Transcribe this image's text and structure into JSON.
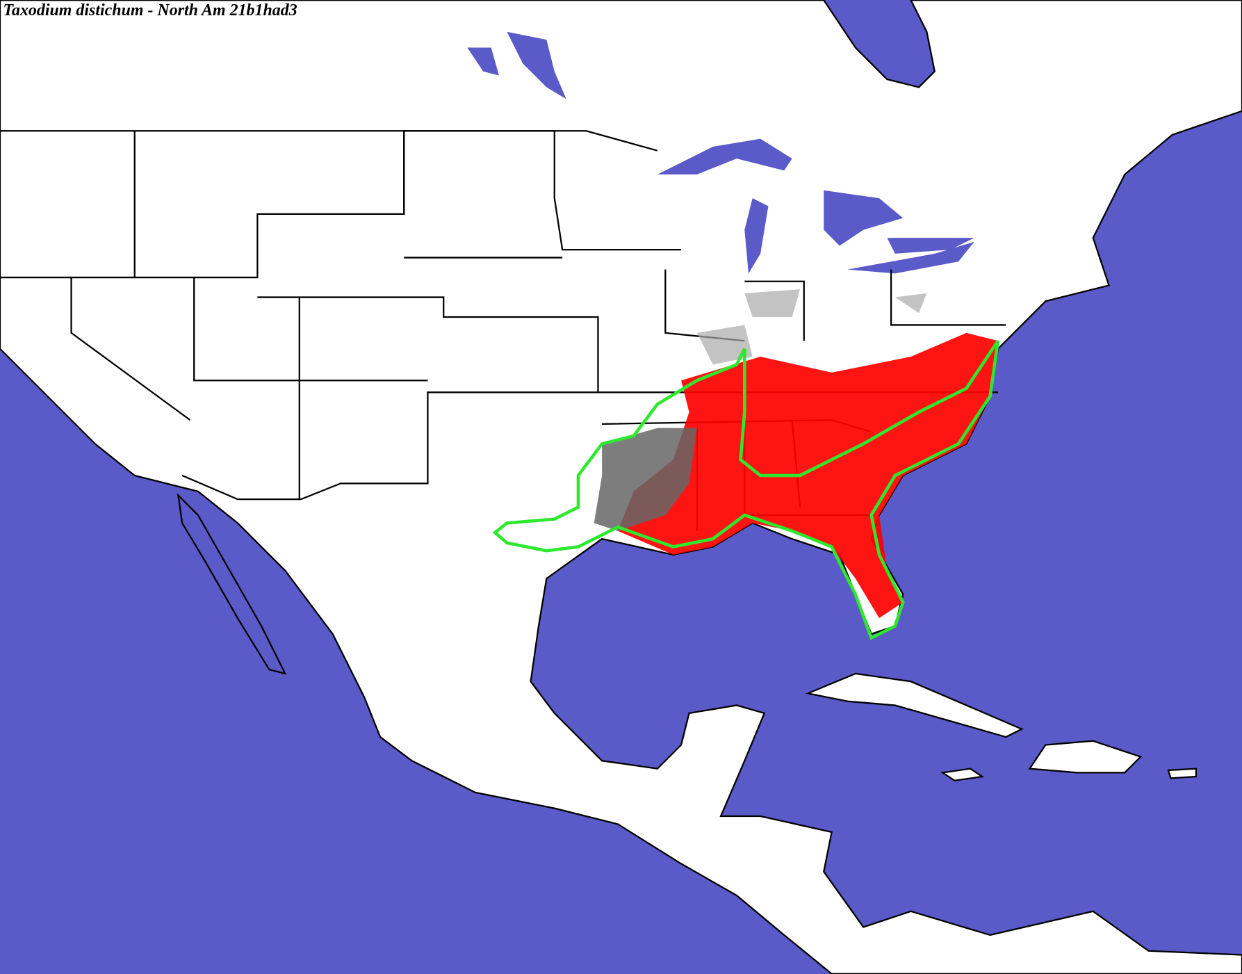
{
  "header": {
    "title": "Taxodium distichum - North Am 21b1had3"
  }
}
